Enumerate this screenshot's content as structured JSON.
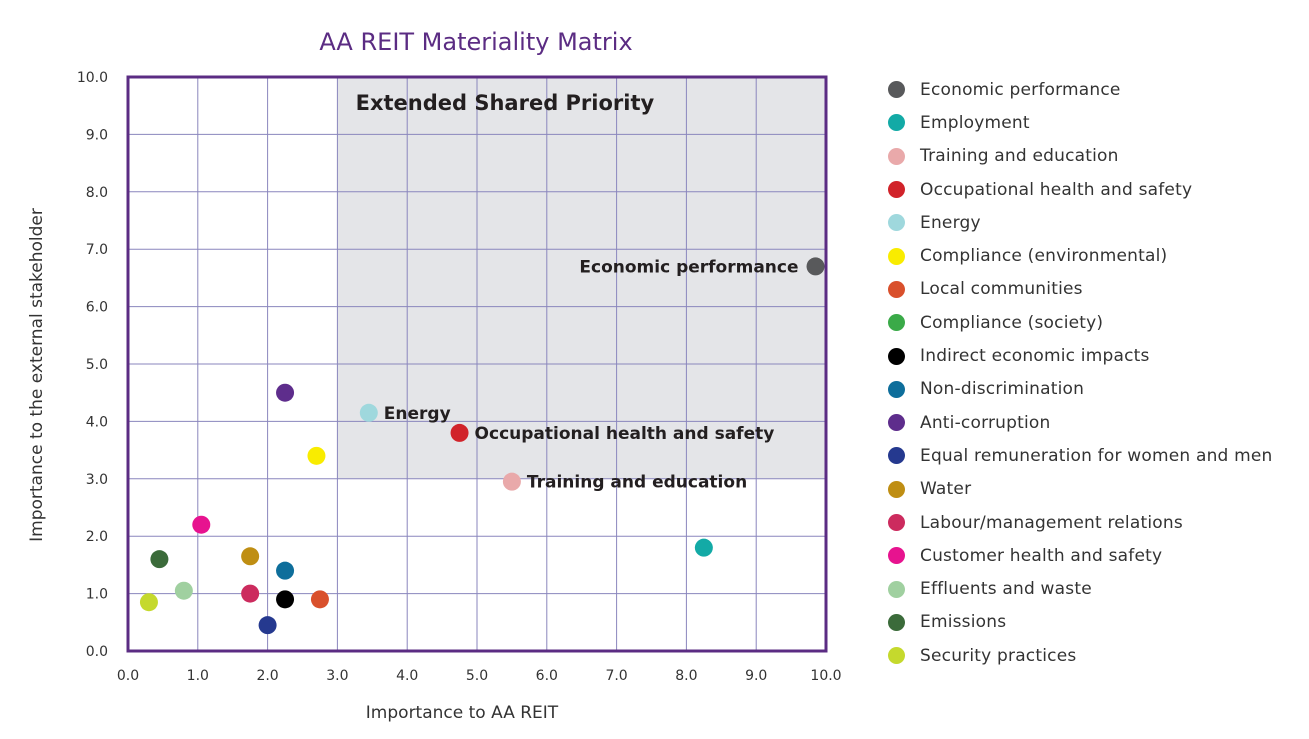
{
  "chart_data": {
    "type": "scatter",
    "title": "AA REIT Materiality Matrix",
    "xlabel": "Importance to AA REIT",
    "ylabel": "Importance to the external stakeholder",
    "xlim": [
      0,
      10
    ],
    "ylim": [
      0,
      10
    ],
    "x_ticks": [
      "0.0",
      "1.0",
      "2.0",
      "3.0",
      "4.0",
      "5.0",
      "6.0",
      "7.0",
      "8.0",
      "9.0",
      "10.0"
    ],
    "y_ticks": [
      "0.0",
      "1.0",
      "2.0",
      "3.0",
      "4.0",
      "5.0",
      "6.0",
      "7.0",
      "8.0",
      "9.0",
      "10.0"
    ],
    "grid": true,
    "region": {
      "label": "Extended Shared Priority",
      "x": [
        3,
        10
      ],
      "y": [
        3,
        10
      ],
      "color": "#e4e5e8"
    },
    "legend_position": "right",
    "colors": {
      "title": "#5b2c83",
      "frame": "#5b2c83",
      "grid": "#8a86bd"
    },
    "series": [
      {
        "name": "Economic performance",
        "color": "#58595b",
        "x": 9.85,
        "y": 6.7,
        "annotation": "Economic performance",
        "annotation_side": "left"
      },
      {
        "name": "Employment",
        "color": "#13aaa6",
        "x": 8.25,
        "y": 1.8
      },
      {
        "name": "Training and education",
        "color": "#e9a9aa",
        "x": 5.5,
        "y": 2.95,
        "annotation": "Training and education",
        "annotation_side": "right"
      },
      {
        "name": "Occupational health and safety",
        "color": "#d1232a",
        "x": 4.75,
        "y": 3.8,
        "annotation": "Occupational health and safety",
        "annotation_side": "right"
      },
      {
        "name": "Energy",
        "color": "#9fd8dd",
        "x": 3.45,
        "y": 4.15,
        "annotation": "Energy",
        "annotation_side": "right"
      },
      {
        "name": "Compliance (environmental)",
        "color": "#f9ec00",
        "x": 2.7,
        "y": 3.4
      },
      {
        "name": "Local communities",
        "color": "#d9502c",
        "x": 2.75,
        "y": 0.9
      },
      {
        "name": "Compliance (society)",
        "color": "#3aaa48",
        "x": null,
        "y": null
      },
      {
        "name": "Indirect economic impacts",
        "color": "#000000",
        "x": 2.25,
        "y": 0.9
      },
      {
        "name": "Non-discrimination",
        "color": "#0e6e9b",
        "x": 2.25,
        "y": 1.4
      },
      {
        "name": "Anti-corruption",
        "color": "#5e2d8c",
        "x": 2.25,
        "y": 4.5
      },
      {
        "name": "Equal remuneration for women and men",
        "color": "#25398f",
        "x": 2.0,
        "y": 0.45
      },
      {
        "name": "Water",
        "color": "#bf8e13",
        "x": 1.75,
        "y": 1.65
      },
      {
        "name": "Labour/management relations",
        "color": "#cc2b5e",
        "x": 1.75,
        "y": 1.0
      },
      {
        "name": "Customer health and safety",
        "color": "#e7138f",
        "x": 1.05,
        "y": 2.2
      },
      {
        "name": "Effluents and waste",
        "color": "#a0d0a0",
        "x": 0.8,
        "y": 1.05
      },
      {
        "name": "Emissions",
        "color": "#3b6b3a",
        "x": 0.45,
        "y": 1.6
      },
      {
        "name": "Security practices",
        "color": "#c5d92d",
        "x": 0.3,
        "y": 0.85
      }
    ]
  }
}
